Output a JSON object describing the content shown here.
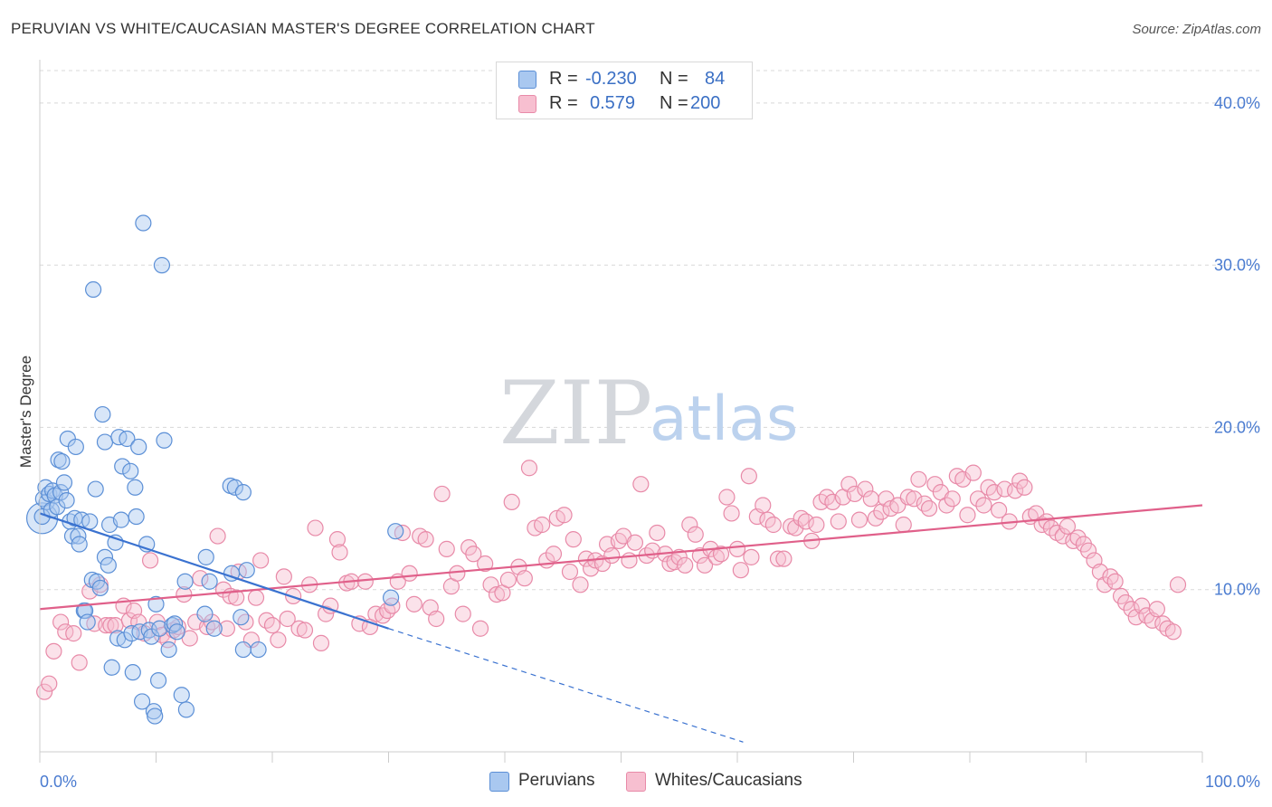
{
  "title": "PERUVIAN VS WHITE/CAUCASIAN MASTER'S DEGREE CORRELATION CHART",
  "source": "Source: ZipAtlas.com",
  "watermark": {
    "zip": "ZIP",
    "atlas": "atlas"
  },
  "colors": {
    "peruvian_fill": "#a9c8f0",
    "peruvian_stroke": "#5b8fd6",
    "peruvian_line": "#3a72d0",
    "white_fill": "#f7bfd0",
    "white_stroke": "#e88aa8",
    "white_line": "#e0608a",
    "tick_text": "#4a7bd0",
    "grid": "#d8d8d8"
  },
  "stats": {
    "peruvians": {
      "r_label": "R =",
      "r_value": "-0.230",
      "n_label": "N =",
      "n_value": "84"
    },
    "whites": {
      "r_label": "R =",
      "r_value": "0.579",
      "n_label": "N =",
      "n_value": "200"
    }
  },
  "legend": {
    "peruvians": "Peruvians",
    "whites": "Whites/Caucasians"
  },
  "chart_data": {
    "type": "scatter",
    "title": "PERUVIAN VS WHITE/CAUCASIAN MASTER'S DEGREE CORRELATION CHART",
    "xlabel": "",
    "ylabel": "Master's Degree",
    "xlim": [
      0,
      100
    ],
    "ylim": [
      0,
      42
    ],
    "x_tick_labels": [
      "0.0%",
      "100.0%"
    ],
    "y_ticks": [
      10,
      20,
      30,
      40
    ],
    "y_tick_labels": [
      "10.0%",
      "20.0%",
      "30.0%",
      "40.0%"
    ],
    "grid": true,
    "legend_position": "bottom",
    "series": [
      {
        "name": "Peruvians",
        "r": -0.23,
        "n": 84,
        "trend_solid": {
          "x": [
            0,
            30
          ],
          "y": [
            14.7,
            7.6
          ]
        },
        "trend_dashed": {
          "x": [
            30,
            60.5
          ],
          "y": [
            7.6,
            0.6
          ]
        },
        "points": [
          [
            0.2,
            14.5
          ],
          [
            0.3,
            15.6
          ],
          [
            0.5,
            16.3
          ],
          [
            0.6,
            15.4
          ],
          [
            0.8,
            15.9
          ],
          [
            1.0,
            14.9
          ],
          [
            1.1,
            16.1
          ],
          [
            1.3,
            15.8
          ],
          [
            1.5,
            15.1
          ],
          [
            1.6,
            18.0
          ],
          [
            1.8,
            16.0
          ],
          [
            1.9,
            17.9
          ],
          [
            2.1,
            16.6
          ],
          [
            2.3,
            15.5
          ],
          [
            2.4,
            19.3
          ],
          [
            2.6,
            14.2
          ],
          [
            2.8,
            13.3
          ],
          [
            3.0,
            14.4
          ],
          [
            3.1,
            18.8
          ],
          [
            3.3,
            13.3
          ],
          [
            3.4,
            12.8
          ],
          [
            3.6,
            14.3
          ],
          [
            3.8,
            8.7
          ],
          [
            3.9,
            8.7
          ],
          [
            4.1,
            8.0
          ],
          [
            4.3,
            14.2
          ],
          [
            4.5,
            10.6
          ],
          [
            4.6,
            28.5
          ],
          [
            4.8,
            16.2
          ],
          [
            4.9,
            10.5
          ],
          [
            5.2,
            10.1
          ],
          [
            5.4,
            20.8
          ],
          [
            5.6,
            12.0
          ],
          [
            5.6,
            19.1
          ],
          [
            5.9,
            11.5
          ],
          [
            6.0,
            14.0
          ],
          [
            6.2,
            5.2
          ],
          [
            6.5,
            12.9
          ],
          [
            6.7,
            7.0
          ],
          [
            6.8,
            19.4
          ],
          [
            7.0,
            14.3
          ],
          [
            7.1,
            17.6
          ],
          [
            7.3,
            6.9
          ],
          [
            7.5,
            19.3
          ],
          [
            7.8,
            17.3
          ],
          [
            7.9,
            7.3
          ],
          [
            8.0,
            4.9
          ],
          [
            8.2,
            16.3
          ],
          [
            8.3,
            14.5
          ],
          [
            8.5,
            18.8
          ],
          [
            8.6,
            7.4
          ],
          [
            8.8,
            3.1
          ],
          [
            8.9,
            32.6
          ],
          [
            9.2,
            12.8
          ],
          [
            9.4,
            7.5
          ],
          [
            9.6,
            7.1
          ],
          [
            9.8,
            2.5
          ],
          [
            9.9,
            2.2
          ],
          [
            10.0,
            9.1
          ],
          [
            10.2,
            4.4
          ],
          [
            10.3,
            7.6
          ],
          [
            10.5,
            30.0
          ],
          [
            10.7,
            19.2
          ],
          [
            11.1,
            6.3
          ],
          [
            11.4,
            7.8
          ],
          [
            11.6,
            7.9
          ],
          [
            11.8,
            7.4
          ],
          [
            12.2,
            3.5
          ],
          [
            12.5,
            10.5
          ],
          [
            12.6,
            2.6
          ],
          [
            14.2,
            8.5
          ],
          [
            14.3,
            12.0
          ],
          [
            14.6,
            10.5
          ],
          [
            15.0,
            7.6
          ],
          [
            16.4,
            16.4
          ],
          [
            16.5,
            11.0
          ],
          [
            16.8,
            16.3
          ],
          [
            17.3,
            8.3
          ],
          [
            17.5,
            6.3
          ],
          [
            17.5,
            16.0
          ],
          [
            17.8,
            11.2
          ],
          [
            18.8,
            6.3
          ],
          [
            30.6,
            13.6
          ],
          [
            30.2,
            9.5
          ]
        ]
      },
      {
        "name": "Whites/Caucasians",
        "r": 0.579,
        "n": 200,
        "trend_solid": {
          "x": [
            0,
            100
          ],
          "y": [
            8.8,
            15.2
          ]
        },
        "points": [
          [
            0.4,
            3.7
          ],
          [
            0.8,
            4.2
          ],
          [
            1.2,
            6.2
          ],
          [
            1.8,
            8.0
          ],
          [
            2.2,
            7.4
          ],
          [
            2.9,
            7.3
          ],
          [
            3.4,
            5.5
          ],
          [
            4.3,
            9.9
          ],
          [
            4.7,
            7.9
          ],
          [
            5.2,
            10.3
          ],
          [
            5.7,
            7.8
          ],
          [
            6.1,
            7.8
          ],
          [
            6.5,
            7.8
          ],
          [
            7.2,
            9.0
          ],
          [
            7.7,
            8.1
          ],
          [
            8.1,
            8.7
          ],
          [
            8.5,
            8.0
          ],
          [
            9.0,
            7.3
          ],
          [
            9.5,
            11.8
          ],
          [
            10.1,
            8.0
          ],
          [
            10.5,
            7.2
          ],
          [
            11.0,
            6.9
          ],
          [
            11.5,
            7.5
          ],
          [
            11.9,
            7.7
          ],
          [
            12.4,
            9.7
          ],
          [
            12.9,
            7.0
          ],
          [
            13.4,
            8.0
          ],
          [
            13.8,
            10.7
          ],
          [
            14.4,
            7.7
          ],
          [
            14.8,
            8.0
          ],
          [
            15.3,
            13.3
          ],
          [
            15.8,
            10.0
          ],
          [
            16.1,
            7.6
          ],
          [
            16.4,
            9.6
          ],
          [
            16.9,
            9.5
          ],
          [
            17.1,
            11.1
          ],
          [
            17.7,
            8.0
          ],
          [
            18.2,
            6.9
          ],
          [
            18.6,
            9.5
          ],
          [
            19.0,
            11.8
          ],
          [
            19.5,
            8.1
          ],
          [
            20.0,
            7.8
          ],
          [
            20.5,
            6.9
          ],
          [
            21.0,
            10.8
          ],
          [
            21.3,
            8.2
          ],
          [
            21.8,
            9.6
          ],
          [
            22.3,
            7.6
          ],
          [
            22.8,
            7.5
          ],
          [
            23.2,
            10.3
          ],
          [
            23.7,
            13.8
          ],
          [
            24.2,
            6.7
          ],
          [
            24.6,
            8.5
          ],
          [
            25.0,
            9.0
          ],
          [
            25.6,
            13.1
          ],
          [
            25.8,
            12.3
          ],
          [
            26.4,
            10.4
          ],
          [
            26.8,
            10.5
          ],
          [
            27.5,
            7.9
          ],
          [
            28.0,
            10.5
          ],
          [
            28.4,
            7.7
          ],
          [
            28.9,
            8.5
          ],
          [
            29.5,
            8.4
          ],
          [
            29.9,
            8.7
          ],
          [
            30.3,
            9.0
          ],
          [
            30.8,
            10.5
          ],
          [
            31.2,
            13.5
          ],
          [
            31.8,
            11.0
          ],
          [
            32.2,
            9.1
          ],
          [
            32.7,
            13.3
          ],
          [
            33.2,
            13.1
          ],
          [
            33.6,
            8.9
          ],
          [
            34.1,
            8.2
          ],
          [
            34.6,
            15.9
          ],
          [
            35.0,
            12.5
          ],
          [
            35.4,
            10.2
          ],
          [
            35.9,
            11.0
          ],
          [
            36.4,
            8.5
          ],
          [
            36.9,
            12.6
          ],
          [
            37.3,
            12.2
          ],
          [
            37.9,
            7.6
          ],
          [
            38.3,
            11.6
          ],
          [
            38.8,
            10.3
          ],
          [
            39.3,
            9.7
          ],
          [
            39.8,
            9.8
          ],
          [
            40.3,
            10.6
          ],
          [
            40.6,
            15.4
          ],
          [
            41.2,
            11.4
          ],
          [
            41.7,
            10.7
          ],
          [
            42.1,
            17.5
          ],
          [
            42.6,
            13.8
          ],
          [
            43.2,
            14.0
          ],
          [
            43.6,
            11.8
          ],
          [
            44.2,
            12.2
          ],
          [
            44.5,
            14.4
          ],
          [
            45.1,
            14.6
          ],
          [
            45.6,
            11.1
          ],
          [
            45.9,
            13.1
          ],
          [
            46.5,
            10.3
          ],
          [
            47.0,
            11.9
          ],
          [
            47.4,
            11.3
          ],
          [
            47.8,
            11.8
          ],
          [
            48.4,
            11.6
          ],
          [
            48.8,
            12.8
          ],
          [
            49.2,
            12.1
          ],
          [
            49.8,
            13.0
          ],
          [
            50.2,
            13.3
          ],
          [
            50.7,
            11.8
          ],
          [
            51.2,
            12.9
          ],
          [
            51.7,
            16.5
          ],
          [
            52.2,
            12.1
          ],
          [
            52.7,
            12.4
          ],
          [
            53.1,
            13.5
          ],
          [
            53.8,
            12.2
          ],
          [
            54.2,
            11.6
          ],
          [
            54.6,
            11.7
          ],
          [
            55.0,
            12.0
          ],
          [
            55.5,
            11.5
          ],
          [
            55.9,
            14.0
          ],
          [
            56.4,
            13.4
          ],
          [
            56.8,
            12.1
          ],
          [
            57.2,
            11.5
          ],
          [
            57.7,
            12.5
          ],
          [
            58.2,
            12.0
          ],
          [
            58.6,
            12.2
          ],
          [
            59.1,
            15.7
          ],
          [
            59.5,
            14.7
          ],
          [
            60.0,
            12.5
          ],
          [
            60.3,
            11.2
          ],
          [
            61.0,
            17.0
          ],
          [
            61.2,
            12.0
          ],
          [
            61.7,
            14.5
          ],
          [
            62.2,
            15.2
          ],
          [
            62.6,
            14.3
          ],
          [
            63.1,
            14.0
          ],
          [
            63.5,
            11.9
          ],
          [
            64.0,
            11.9
          ],
          [
            64.6,
            13.9
          ],
          [
            65.0,
            13.8
          ],
          [
            65.5,
            14.4
          ],
          [
            65.9,
            14.2
          ],
          [
            66.4,
            13.0
          ],
          [
            66.8,
            14.0
          ],
          [
            67.2,
            15.4
          ],
          [
            67.7,
            15.7
          ],
          [
            68.2,
            15.4
          ],
          [
            68.7,
            14.2
          ],
          [
            69.1,
            15.7
          ],
          [
            69.6,
            16.5
          ],
          [
            70.1,
            15.9
          ],
          [
            70.5,
            14.3
          ],
          [
            71.0,
            16.2
          ],
          [
            71.5,
            15.6
          ],
          [
            71.9,
            14.4
          ],
          [
            72.4,
            14.8
          ],
          [
            72.8,
            15.6
          ],
          [
            73.2,
            15.0
          ],
          [
            73.8,
            15.2
          ],
          [
            74.3,
            14.0
          ],
          [
            74.7,
            15.7
          ],
          [
            75.2,
            15.6
          ],
          [
            75.6,
            16.8
          ],
          [
            76.1,
            15.3
          ],
          [
            76.5,
            15.0
          ],
          [
            77.0,
            16.5
          ],
          [
            77.5,
            16.0
          ],
          [
            78.0,
            15.2
          ],
          [
            78.5,
            15.6
          ],
          [
            78.9,
            17.0
          ],
          [
            79.4,
            16.8
          ],
          [
            79.8,
            14.6
          ],
          [
            80.3,
            17.2
          ],
          [
            80.7,
            15.6
          ],
          [
            81.2,
            15.2
          ],
          [
            81.6,
            16.3
          ],
          [
            82.1,
            16.0
          ],
          [
            82.5,
            14.9
          ],
          [
            83.0,
            16.2
          ],
          [
            83.4,
            14.2
          ],
          [
            83.9,
            16.1
          ],
          [
            84.3,
            16.7
          ],
          [
            84.7,
            16.3
          ],
          [
            85.2,
            14.5
          ],
          [
            85.7,
            14.7
          ],
          [
            86.2,
            14.0
          ],
          [
            86.6,
            14.2
          ],
          [
            87.0,
            13.8
          ],
          [
            87.5,
            13.5
          ],
          [
            88.0,
            13.3
          ],
          [
            88.4,
            13.9
          ],
          [
            88.9,
            13.0
          ],
          [
            89.3,
            13.2
          ],
          [
            89.8,
            12.8
          ],
          [
            90.2,
            12.4
          ],
          [
            90.7,
            11.8
          ],
          [
            91.2,
            11.1
          ],
          [
            91.6,
            10.3
          ],
          [
            92.1,
            10.8
          ],
          [
            92.5,
            10.5
          ],
          [
            93.0,
            9.6
          ],
          [
            93.4,
            9.2
          ],
          [
            93.9,
            8.8
          ],
          [
            94.3,
            8.3
          ],
          [
            94.8,
            9.0
          ],
          [
            95.2,
            8.4
          ],
          [
            95.7,
            8.1
          ],
          [
            96.1,
            8.8
          ],
          [
            96.6,
            7.9
          ],
          [
            97.0,
            7.6
          ],
          [
            97.5,
            7.4
          ],
          [
            97.9,
            10.3
          ]
        ]
      }
    ]
  }
}
